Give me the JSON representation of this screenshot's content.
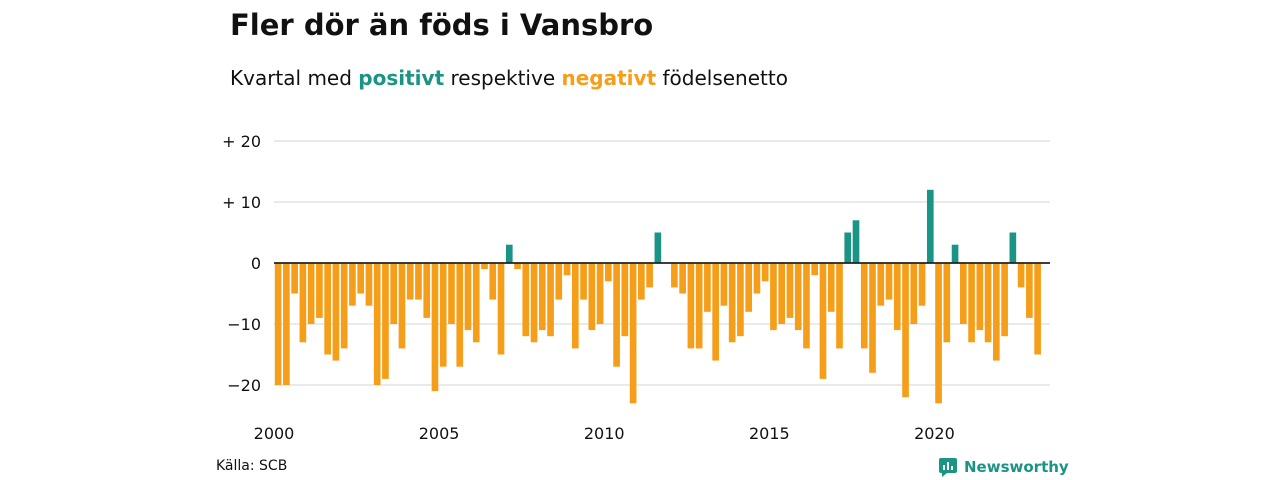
{
  "header": {
    "title": "Fler dör än föds i Vansbro",
    "subtitle_prefix": "Kvartal med",
    "subtitle_positive": "positivt",
    "subtitle_middle": "respektive",
    "subtitle_negative": "negativt",
    "subtitle_suffix": "födelsenetto"
  },
  "footer": {
    "source": "Källa: SCB",
    "brand": "Newsworthy"
  },
  "colors": {
    "positive": "#1a9484",
    "negative": "#f59e1a",
    "grid": "#dddddd",
    "axis": "#222222"
  },
  "chart_data": {
    "type": "bar",
    "title": "Fler dör än föds i Vansbro",
    "subtitle": "Kvartal med positivt respektive negativt födelsenetto",
    "xlabel": "",
    "ylabel": "",
    "x_start": 2000,
    "x_end": 2023.5,
    "ylim": [
      -23,
      20
    ],
    "yticks": [
      20,
      10,
      0,
      -10,
      -20
    ],
    "ytick_labels": [
      "+ 20",
      "+ 10",
      "0",
      "−10",
      "−20"
    ],
    "xticks": [
      2000,
      2005,
      2010,
      2015,
      2020
    ],
    "xtick_labels": [
      "2000",
      "2005",
      "2010",
      "2015",
      "2020"
    ],
    "grid": true,
    "legend": "none",
    "quarters_per_year": 4,
    "values": [
      -20,
      -20,
      -5,
      -13,
      -10,
      -9,
      -15,
      -16,
      -14,
      -7,
      -5,
      -7,
      -20,
      -19,
      -10,
      -14,
      -6,
      -6,
      -9,
      -21,
      -17,
      -10,
      -17,
      -11,
      -13,
      -1,
      -6,
      -15,
      3,
      -1,
      -12,
      -13,
      -11,
      -12,
      -6,
      -2,
      -14,
      -6,
      -11,
      -10,
      -3,
      -17,
      -12,
      -23,
      -6,
      -4,
      5,
      0,
      -4,
      -5,
      -14,
      -14,
      -8,
      -16,
      -7,
      -13,
      -12,
      -8,
      -5,
      -3,
      -11,
      -10,
      -9,
      -11,
      -14,
      -2,
      -19,
      -8,
      -14,
      5,
      7,
      -14,
      -18,
      -7,
      -6,
      -11,
      -22,
      -10,
      -7,
      12,
      -23,
      -13,
      3,
      -10,
      -13,
      -11,
      -13,
      -16,
      -12,
      5,
      -4,
      -9,
      -15
    ]
  }
}
